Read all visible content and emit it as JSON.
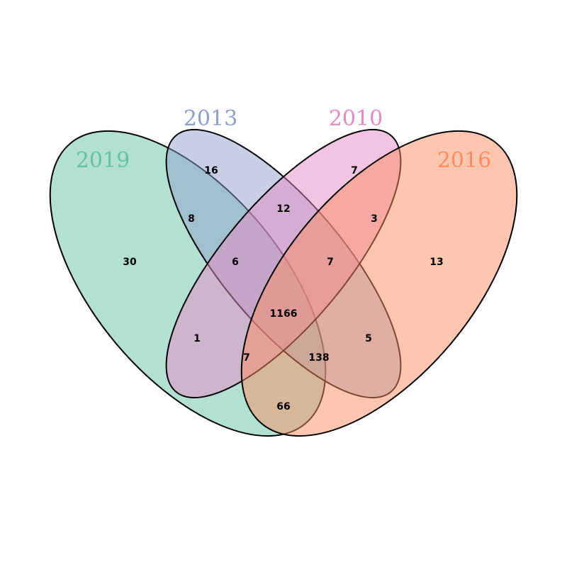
{
  "sets": [
    {
      "id": "2019",
      "label": "2019",
      "color": "#66C2A5"
    },
    {
      "id": "2013",
      "label": "2013",
      "color": "#8DA0CB"
    },
    {
      "id": "2010",
      "label": "2010",
      "color": "#E78AC3"
    },
    {
      "id": "2016",
      "label": "2016",
      "color": "#FC8D62"
    }
  ],
  "regions": {
    "only_2019": "30",
    "only_2013": "16",
    "only_2010": "7",
    "only_2016": "13",
    "r2019_2013": "8",
    "r2013_2010": "12",
    "r2010_2016": "3",
    "r2019_2013_2010": "6",
    "r2013_2010_2016": "7",
    "all_four": "1166",
    "r2019_2010": "1",
    "r2013_2016": "5",
    "r2019_2010_2016": "7",
    "r2019_2013_2016": "138",
    "r2019_2016": "66"
  }
}
